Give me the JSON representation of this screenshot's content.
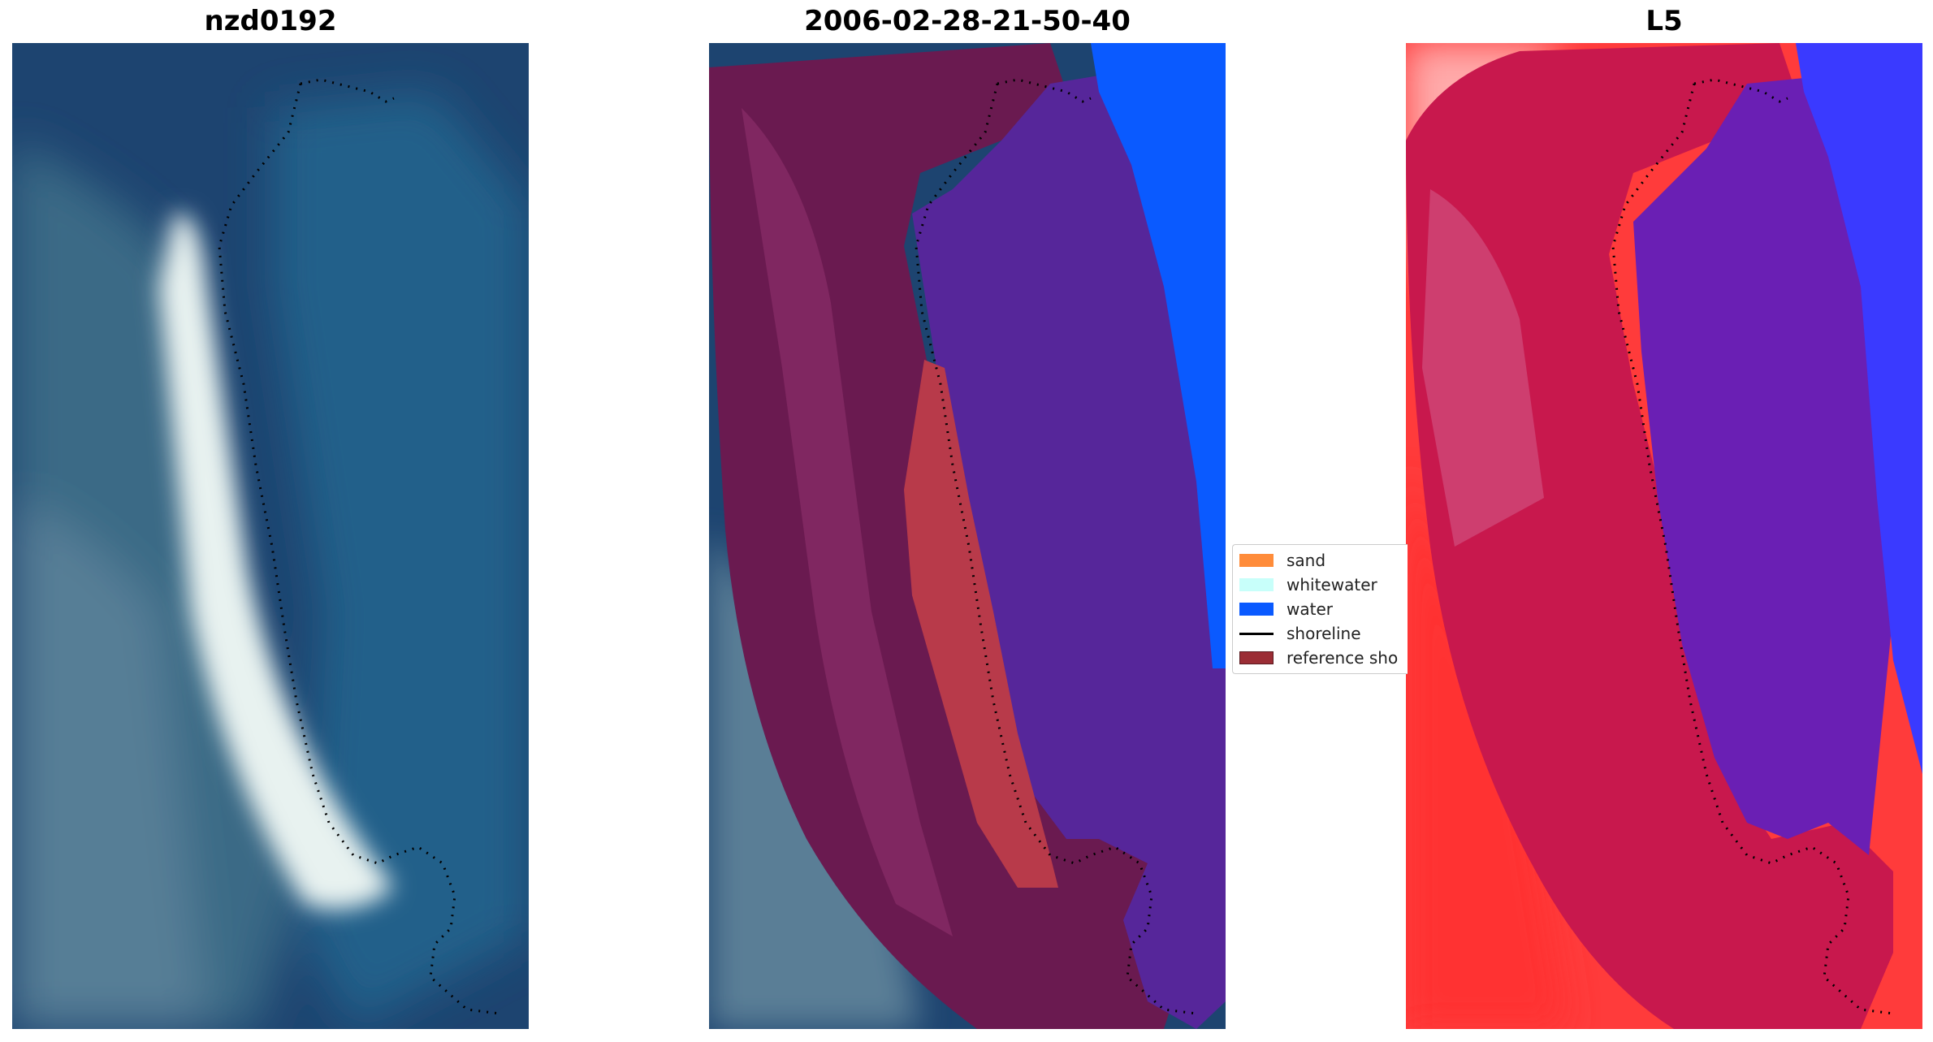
{
  "panels": [
    {
      "title": "nzd0192"
    },
    {
      "title": "2006-02-28-21-50-40"
    },
    {
      "title": "L5"
    }
  ],
  "legend": {
    "items": [
      {
        "label": "sand",
        "color": "#ff8c3a"
      },
      {
        "label": "whitewater",
        "color": "#c8fffa"
      },
      {
        "label": "water",
        "color": "#0a5aff"
      },
      {
        "label": "shoreline",
        "color": "#000000"
      },
      {
        "label": "reference sho",
        "color": "#9b2d35"
      }
    ]
  },
  "colors": {
    "ocean": "#1d4470",
    "lagoon": "#235c80",
    "beach": "#e8f0ee",
    "buffer": "#6a1a50",
    "classified_water": "#56269a",
    "index_high": "#ff3b3b",
    "index_mid": "#c8184d",
    "index_low": "#6a1fb4",
    "index_water": "#3a3aff"
  }
}
